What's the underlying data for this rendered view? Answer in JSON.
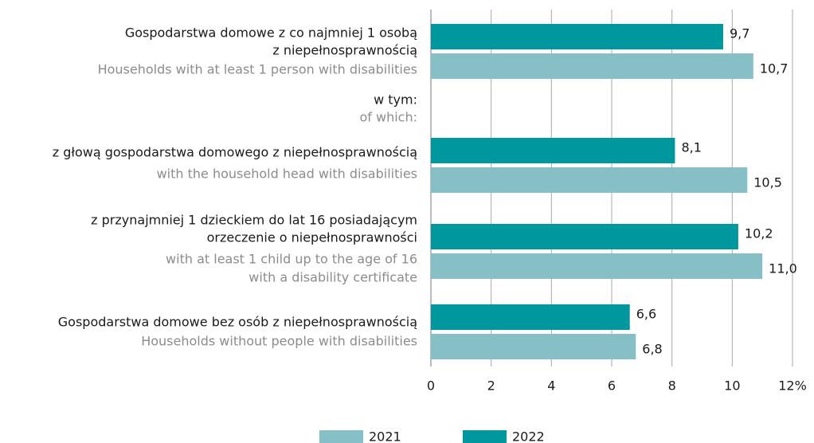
{
  "chart_data": {
    "type": "bar",
    "orientation": "horizontal",
    "categories": [
      {
        "label": [
          "Gospodarstwa domowe z co najmniej 1 osobą",
          "z niepełnosprawnością"
        ],
        "label_en": [
          "Households with at least 1 person with disabilities"
        ]
      },
      {
        "label": [
          "w tym:"
        ],
        "label_en": [
          "of which:"
        ]
      },
      {
        "label": [
          "z głową gospodarstwa domowego z niepełnosprawnością"
        ],
        "label_en": [
          "with the household head with disabilities"
        ]
      },
      {
        "label": [
          "z przynajmniej 1 dzieckiem do lat 16 posiadającym",
          "orzeczenie o niepełnosprawności"
        ],
        "label_en": [
          "with at least 1 child up to the age of 16",
          "with a disability certificate"
        ]
      },
      {
        "label": [
          "Gospodarstwa domowe bez osób z niepełnosprawnością"
        ],
        "label_en": [
          "Households without people with disabilities"
        ]
      }
    ],
    "series": [
      {
        "name": "2021",
        "color": "#86bfc5",
        "values": [
          10.7,
          null,
          10.5,
          11.0,
          6.8
        ],
        "value_labels": [
          "10,7",
          null,
          "10,5",
          "11,0",
          "6,8"
        ]
      },
      {
        "name": "2022",
        "color": "#00979f",
        "values": [
          9.7,
          null,
          8.1,
          10.2,
          6.6
        ],
        "value_labels": [
          "9,7",
          null,
          "8,1",
          "10,2",
          "6,6"
        ]
      }
    ],
    "xlim": [
      0,
      12
    ],
    "xticks": [
      0,
      2,
      4,
      6,
      8,
      10,
      {
        "value": 12,
        "label": "12%"
      }
    ],
    "grid": true,
    "legend": "bottom"
  }
}
